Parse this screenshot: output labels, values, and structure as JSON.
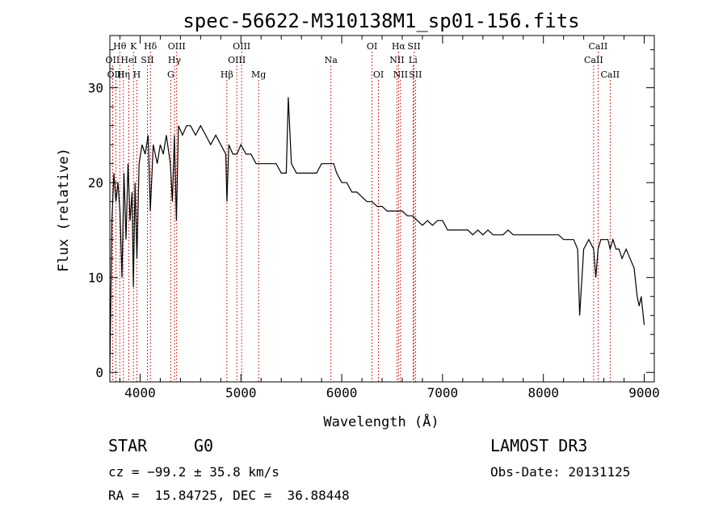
{
  "chart_data": {
    "type": "line",
    "title": "spec-56622-M310138M1_sp01-156.fits",
    "xlabel": "Wavelength (Å)",
    "ylabel": "Flux (relative)",
    "xlim": [
      3700,
      9100
    ],
    "ylim": [
      -1,
      35.5
    ],
    "xticks": [
      4000,
      5000,
      6000,
      7000,
      8000,
      9000
    ],
    "yticks": [
      0,
      10,
      20,
      30
    ],
    "series": [
      {
        "name": "flux",
        "color": "#000000",
        "x": [
          3700,
          3720,
          3740,
          3760,
          3780,
          3800,
          3820,
          3840,
          3860,
          3880,
          3900,
          3920,
          3933,
          3950,
          3968,
          3990,
          4020,
          4050,
          4080,
          4101,
          4130,
          4170,
          4200,
          4230,
          4260,
          4300,
          4320,
          4340,
          4360,
          4380,
          4420,
          4460,
          4500,
          4550,
          4600,
          4650,
          4700,
          4750,
          4800,
          4850,
          4861,
          4880,
          4920,
          4960,
          5000,
          5050,
          5100,
          5150,
          5200,
          5250,
          5300,
          5350,
          5400,
          5450,
          5470,
          5500,
          5550,
          5600,
          5650,
          5700,
          5750,
          5800,
          5850,
          5893,
          5920,
          5950,
          6000,
          6050,
          6100,
          6150,
          6200,
          6250,
          6300,
          6350,
          6400,
          6450,
          6500,
          6563,
          6600,
          6650,
          6700,
          6750,
          6800,
          6850,
          6900,
          6950,
          7000,
          7050,
          7100,
          7150,
          7200,
          7250,
          7300,
          7350,
          7400,
          7450,
          7500,
          7550,
          7600,
          7650,
          7700,
          7750,
          7800,
          7850,
          7900,
          7950,
          8000,
          8050,
          8100,
          8150,
          8200,
          8250,
          8300,
          8340,
          8360,
          8400,
          8450,
          8498,
          8520,
          8542,
          8570,
          8600,
          8640,
          8662,
          8690,
          8720,
          8750,
          8780,
          8820,
          8860,
          8900,
          8930,
          8950,
          8970,
          9000
        ],
        "values": [
          0,
          16,
          21,
          18,
          20,
          17,
          10,
          21,
          14,
          22,
          16,
          19,
          9,
          20,
          12,
          22,
          24,
          23,
          25,
          17,
          24,
          22,
          24,
          23,
          25,
          22,
          18,
          25,
          16,
          26,
          25,
          26,
          26,
          25,
          26,
          25,
          24,
          25,
          24,
          23,
          18,
          24,
          23,
          23,
          24,
          23,
          23,
          22,
          22,
          22,
          22,
          22,
          21,
          21,
          29,
          22,
          21,
          21,
          21,
          21,
          21,
          22,
          22,
          22,
          22,
          21,
          20,
          20,
          19,
          19,
          18.5,
          18,
          18,
          17.5,
          17.5,
          17,
          17,
          17,
          17,
          16.5,
          16.5,
          16,
          15.5,
          16,
          15.5,
          16,
          16,
          15,
          15,
          15,
          15,
          15,
          14.5,
          15,
          14.5,
          15,
          14.5,
          14.5,
          14.5,
          15,
          14.5,
          14.5,
          14.5,
          14.5,
          14.5,
          14.5,
          14.5,
          14.5,
          14.5,
          14.5,
          14,
          14,
          14,
          13,
          6,
          13,
          14,
          13,
          10,
          13,
          14,
          14,
          14,
          13,
          14,
          13,
          13,
          12,
          13,
          12,
          11,
          8,
          7,
          8,
          5
        ]
      }
    ],
    "lines": [
      {
        "name": "OII",
        "wave": 3727,
        "label": "OII",
        "row": 2
      },
      {
        "name": "OIII",
        "wave": 3760,
        "label": "OIII",
        "row": 3
      },
      {
        "name": "Hθ",
        "wave": 3798,
        "label": "Hθ",
        "row": 1
      },
      {
        "name": "Hη",
        "wave": 3835,
        "label": "Hη",
        "row": 3
      },
      {
        "name": "HeI",
        "wave": 3889,
        "label": "HeI",
        "row": 2
      },
      {
        "name": "K",
        "wave": 3934,
        "label": "K",
        "row": 1
      },
      {
        "name": "H",
        "wave": 3968,
        "label": "H",
        "row": 3
      },
      {
        "name": "SII",
        "wave": 4072,
        "label": "SII",
        "row": 2
      },
      {
        "name": "Hδ",
        "wave": 4102,
        "label": "Hδ",
        "row": 1
      },
      {
        "name": "G",
        "wave": 4304,
        "label": "G",
        "row": 3
      },
      {
        "name": "Hγ",
        "wave": 4341,
        "label": "Hγ",
        "row": 2
      },
      {
        "name": "OIII",
        "wave": 4363,
        "label": "OIII",
        "row": 1
      },
      {
        "name": "Hβ",
        "wave": 4861,
        "label": "Hβ",
        "row": 3
      },
      {
        "name": "OIII",
        "wave": 4959,
        "label": "OIII",
        "row": 2
      },
      {
        "name": "OIII",
        "wave": 5007,
        "label": "OIII",
        "row": 1
      },
      {
        "name": "Mg",
        "wave": 5175,
        "label": "Mg",
        "row": 3
      },
      {
        "name": "Na",
        "wave": 5893,
        "label": "Na",
        "row": 2
      },
      {
        "name": "OI",
        "wave": 6300,
        "label": "OI",
        "row": 1
      },
      {
        "name": "OI",
        "wave": 6364,
        "label": "OI",
        "row": 3
      },
      {
        "name": "NII",
        "wave": 6548,
        "label": "NII",
        "row": 2
      },
      {
        "name": "Hα",
        "wave": 6563,
        "label": "Hα",
        "row": 1
      },
      {
        "name": "NII",
        "wave": 6583,
        "label": "NII",
        "row": 3
      },
      {
        "name": "Li",
        "wave": 6707,
        "label": "Li",
        "row": 2
      },
      {
        "name": "SII",
        "wave": 6716,
        "label": "SII",
        "row": 1
      },
      {
        "name": "SII",
        "wave": 6731,
        "label": "SII",
        "row": 3
      },
      {
        "name": "CaII",
        "wave": 8498,
        "label": "CaII",
        "row": 2
      },
      {
        "name": "CaII",
        "wave": 8542,
        "label": "CaII",
        "row": 1
      },
      {
        "name": "CaII",
        "wave": 8662,
        "label": "CaII",
        "row": 3
      }
    ],
    "line_color": "#cc0000"
  },
  "info": {
    "class": "STAR",
    "subclass": "G0",
    "survey": "LAMOST DR3",
    "cz": "cz = −99.2 ± 35.8 km/s",
    "obs_date": "Obs-Date: 20131125",
    "radec": "RA =  15.84725, DEC =  36.88448"
  }
}
